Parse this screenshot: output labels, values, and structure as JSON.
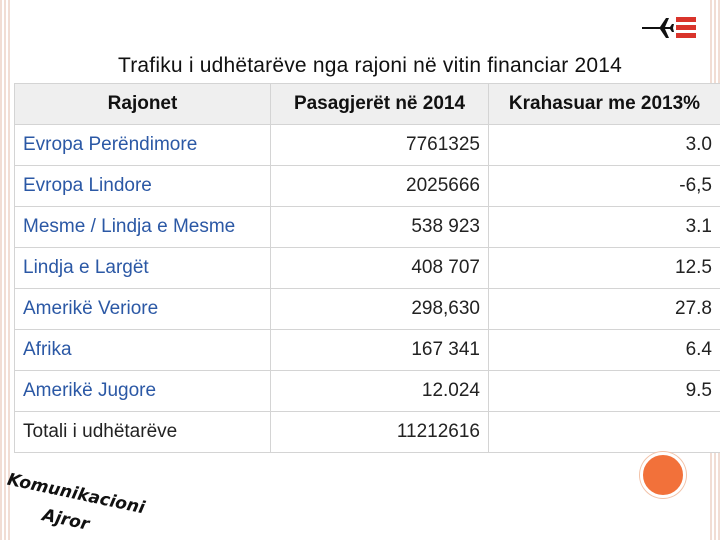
{
  "title": "Trafiku i udhëtarëve nga rajoni në vitin financiar 2014",
  "table": {
    "headers": [
      "Rajonet",
      "Pasagjerët në 2014",
      "Krahasuar me 2013%"
    ],
    "rows": [
      {
        "region": "Evropa Perëndimore",
        "passengers": "7761325",
        "change": "3.0"
      },
      {
        "region": "Evropa Lindore",
        "passengers": "2025666",
        "change": "-6,5"
      },
      {
        "region": "Mesme / Lindja e Mesme",
        "passengers": "538 923",
        "change": "3.1"
      },
      {
        "region": "Lindja e Largët",
        "passengers": "408 707",
        "change": "12.5"
      },
      {
        "region": "Amerikë Veriore",
        "passengers": "298,630",
        "change": "27.8"
      },
      {
        "region": "Afrika",
        "passengers": "167 341",
        "change": "6.4"
      },
      {
        "region": "Amerikë Jugore",
        "passengers": "12.024",
        "change": "9.5"
      }
    ],
    "total": {
      "label": "Totali i udhëtarëve",
      "passengers": "11212616",
      "change": ""
    }
  },
  "stamp": {
    "line1": "Komunikacioni",
    "line2": "Ajror"
  },
  "colors": {
    "region_text": "#2b58a5",
    "header_bg": "#efefef",
    "accent_orange": "#f2713a",
    "logo_red": "#d9342b"
  },
  "icons": {
    "logo": "airplane-flag-logo-icon",
    "decor": "orange-circle-icon"
  }
}
